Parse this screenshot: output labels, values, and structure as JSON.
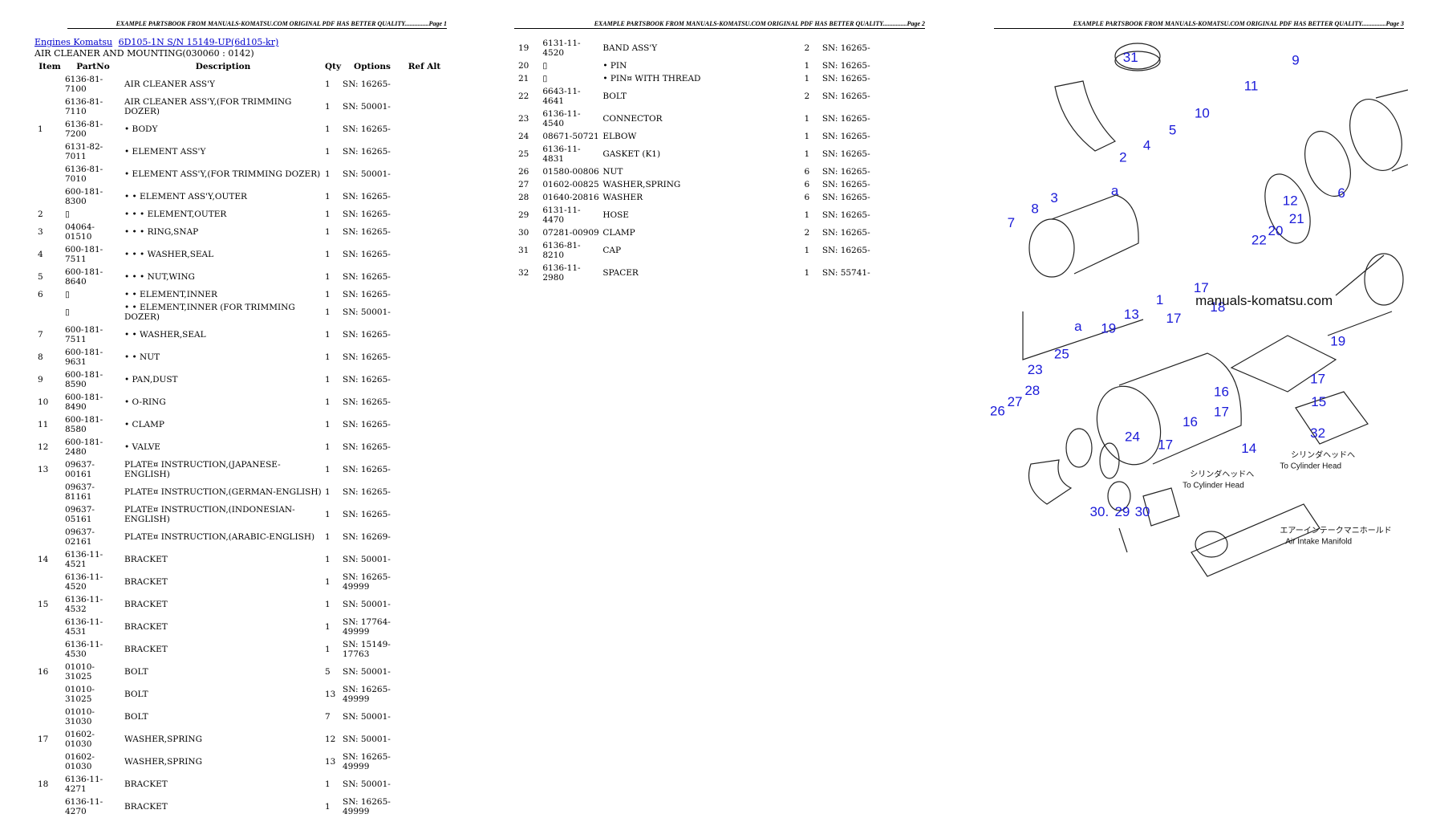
{
  "pages": [
    {
      "header": "EXAMPLE PARTSBOOK FROM MANUALS-KOMATSU.COM ORIGINAL PDF HAS BETTER QUALITY...............Page 1",
      "breadcrumb": [
        "Engines Komatsu",
        "6D105-1N S/N 15149-UP(6d105-kr)"
      ],
      "subtitle": "AIR CLEANER AND MOUNTING(030060 : 0142)",
      "columns": [
        "Item",
        "PartNo",
        "Description",
        "Qty",
        "Options",
        "Ref Alt"
      ],
      "rows": [
        {
          "part": "6136-81-7100",
          "desc": "AIR CLEANER ASS'Y",
          "qty": "1",
          "options": "SN: 16265-"
        },
        {
          "part": "6136-81-7110",
          "desc": "AIR CLEANER ASS'Y,(FOR TRIMMING DOZER)",
          "qty": "1",
          "options": "SN: 50001-"
        },
        {
          "item": "1",
          "part": "6136-81-7200",
          "desc": "• BODY",
          "qty": "1",
          "options": "SN: 16265-"
        },
        {
          "part": "6131-82-7011",
          "desc": "• ELEMENT ASS'Y",
          "qty": "1",
          "options": "SN: 16265-"
        },
        {
          "part": "6136-81-7010",
          "desc": "• ELEMENT ASS'Y,(FOR TRIMMING DOZER)",
          "qty": "1",
          "options": "SN: 50001-"
        },
        {
          "part": "600-181-8300",
          "desc": "• • ELEMENT ASS'Y,OUTER",
          "qty": "1",
          "options": "SN: 16265-"
        },
        {
          "item": "2",
          "part": "▯",
          "desc": "• • • ELEMENT,OUTER",
          "qty": "1",
          "options": "SN: 16265-"
        },
        {
          "item": "3",
          "part": "04064-01510",
          "desc": "• • • RING,SNAP",
          "qty": "1",
          "options": "SN: 16265-"
        },
        {
          "item": "4",
          "part": "600-181-7511",
          "desc": "• • • WASHER,SEAL",
          "qty": "1",
          "options": "SN: 16265-"
        },
        {
          "item": "5",
          "part": "600-181-8640",
          "desc": "• • • NUT,WING",
          "qty": "1",
          "options": "SN: 16265-"
        },
        {
          "item": "6",
          "part": "▯",
          "desc": "• • ELEMENT,INNER",
          "qty": "1",
          "options": "SN: 16265-"
        },
        {
          "part": "▯",
          "desc": "• • ELEMENT,INNER (FOR TRIMMING DOZER)",
          "qty": "1",
          "options": "SN: 50001-"
        },
        {
          "item": "7",
          "part": "600-181-7511",
          "desc": "• • WASHER,SEAL",
          "qty": "1",
          "options": "SN: 16265-"
        },
        {
          "item": "8",
          "part": "600-181-9631",
          "desc": "• • NUT",
          "qty": "1",
          "options": "SN: 16265-"
        },
        {
          "item": "9",
          "part": "600-181-8590",
          "desc": "• PAN,DUST",
          "qty": "1",
          "options": "SN: 16265-"
        },
        {
          "item": "10",
          "part": "600-181-8490",
          "desc": "• O-RING",
          "qty": "1",
          "options": "SN: 16265-"
        },
        {
          "item": "11",
          "part": "600-181-8580",
          "desc": "• CLAMP",
          "qty": "1",
          "options": "SN: 16265-"
        },
        {
          "item": "12",
          "part": "600-181-2480",
          "desc": "• VALVE",
          "qty": "1",
          "options": "SN: 16265-"
        },
        {
          "item": "13",
          "part": "09637-00161",
          "desc": "PLATE¤ INSTRUCTION,(JAPANESE-ENGLISH)",
          "qty": "1",
          "options": "SN: 16265-"
        },
        {
          "part": "09637-81161",
          "desc": "PLATE¤ INSTRUCTION,(GERMAN-ENGLISH)",
          "qty": "1",
          "options": "SN: 16265-"
        },
        {
          "part": "09637-05161",
          "desc": "PLATE¤ INSTRUCTION,(INDONESIAN-ENGLISH)",
          "qty": "1",
          "options": "SN: 16265-"
        },
        {
          "part": "09637-02161",
          "desc": "PLATE¤ INSTRUCTION,(ARABIC-ENGLISH)",
          "qty": "1",
          "options": "SN: 16269-"
        },
        {
          "item": "14",
          "part": "6136-11-4521",
          "desc": "BRACKET",
          "qty": "1",
          "options": "SN: 50001-"
        },
        {
          "part": "6136-11-4520",
          "desc": "BRACKET",
          "qty": "1",
          "options": "SN: 16265-49999"
        },
        {
          "item": "15",
          "part": "6136-11-4532",
          "desc": "BRACKET",
          "qty": "1",
          "options": "SN: 50001-"
        },
        {
          "part": "6136-11-4531",
          "desc": "BRACKET",
          "qty": "1",
          "options": "SN: 17764-49999"
        },
        {
          "part": "6136-11-4530",
          "desc": "BRACKET",
          "qty": "1",
          "options": "SN: 15149-17763"
        },
        {
          "item": "16",
          "part": "01010-31025",
          "desc": "BOLT",
          "qty": "5",
          "options": "SN: 50001-"
        },
        {
          "part": "01010-31025",
          "desc": "BOLT",
          "qty": "13",
          "options": "SN: 16265-49999"
        },
        {
          "part": "01010-31030",
          "desc": "BOLT",
          "qty": "7",
          "options": "SN: 50001-"
        },
        {
          "item": "17",
          "part": "01602-01030",
          "desc": "WASHER,SPRING",
          "qty": "12",
          "options": "SN: 50001-"
        },
        {
          "part": "01602-01030",
          "desc": "WASHER,SPRING",
          "qty": "13",
          "options": "SN: 16265-49999"
        },
        {
          "item": "18",
          "part": "6136-11-4271",
          "desc": "BRACKET",
          "qty": "1",
          "options": "SN: 50001-"
        },
        {
          "part": "6136-11-4270",
          "desc": "BRACKET",
          "qty": "1",
          "options": "SN: 16265-49999"
        }
      ]
    },
    {
      "header": "EXAMPLE PARTSBOOK FROM MANUALS-KOMATSU.COM ORIGINAL PDF HAS BETTER QUALITY...............Page 2",
      "rows": [
        {
          "item": "19",
          "part": "6131-11-4520",
          "desc": "BAND ASS'Y",
          "qty": "2",
          "options": "SN: 16265-"
        },
        {
          "item": "20",
          "part": "▯",
          "desc": "• PIN",
          "qty": "1",
          "options": "SN: 16265-"
        },
        {
          "item": "21",
          "part": "▯",
          "desc": "• PIN¤ WITH THREAD",
          "qty": "1",
          "options": "SN: 16265-"
        },
        {
          "item": "22",
          "part": "6643-11-4641",
          "desc": "BOLT",
          "qty": "2",
          "options": "SN: 16265-"
        },
        {
          "item": "23",
          "part": "6136-11-4540",
          "desc": "CONNECTOR",
          "qty": "1",
          "options": "SN: 16265-"
        },
        {
          "item": "24",
          "part": "08671-50721",
          "desc": "ELBOW",
          "qty": "1",
          "options": "SN: 16265-"
        },
        {
          "item": "25",
          "part": "6136-11-4831",
          "desc": "GASKET (K1)",
          "qty": "1",
          "options": "SN: 16265-"
        },
        {
          "item": "26",
          "part": "01580-00806",
          "desc": "NUT",
          "qty": "6",
          "options": "SN: 16265-"
        },
        {
          "item": "27",
          "part": "01602-00825",
          "desc": "WASHER,SPRING",
          "qty": "6",
          "options": "SN: 16265-"
        },
        {
          "item": "28",
          "part": "01640-20816",
          "desc": "WASHER",
          "qty": "6",
          "options": "SN: 16265-"
        },
        {
          "item": "29",
          "part": "6131-11-4470",
          "desc": "HOSE",
          "qty": "1",
          "options": "SN: 16265-"
        },
        {
          "item": "30",
          "part": "07281-00909",
          "desc": "CLAMP",
          "qty": "2",
          "options": "SN: 16265-"
        },
        {
          "item": "31",
          "part": "6136-81-8210",
          "desc": "CAP",
          "qty": "1",
          "options": "SN: 16265-"
        },
        {
          "item": "32",
          "part": "6136-11-2980",
          "desc": "SPACER",
          "qty": "1",
          "options": "SN: 55741-"
        }
      ]
    },
    {
      "header": "EXAMPLE PARTSBOOK FROM MANUALS-KOMATSU.COM ORIGINAL PDF HAS BETTER QUALITY...............Page 3",
      "watermark": "manuals-komatsu.com",
      "callouts": [
        "31",
        "9",
        "11",
        "10",
        "2",
        "4",
        "5",
        "a",
        "3",
        "8",
        "7",
        "12",
        "6",
        "20",
        "21",
        "22",
        "17",
        "18",
        "1",
        "13",
        "17",
        "a",
        "19",
        "19",
        "25",
        "23",
        "28",
        "27",
        "26",
        "16",
        "17",
        "15",
        "17",
        "16",
        "24",
        "17",
        "14",
        "32",
        "30.",
        "29",
        "30"
      ],
      "notes": [
        "シリンダヘッドへ",
        "To Cylinder Head",
        "シリンダヘッドへ",
        "To Cylinder Head",
        "エアーインテークマニホールド",
        "Air Intake Manifold"
      ]
    }
  ]
}
